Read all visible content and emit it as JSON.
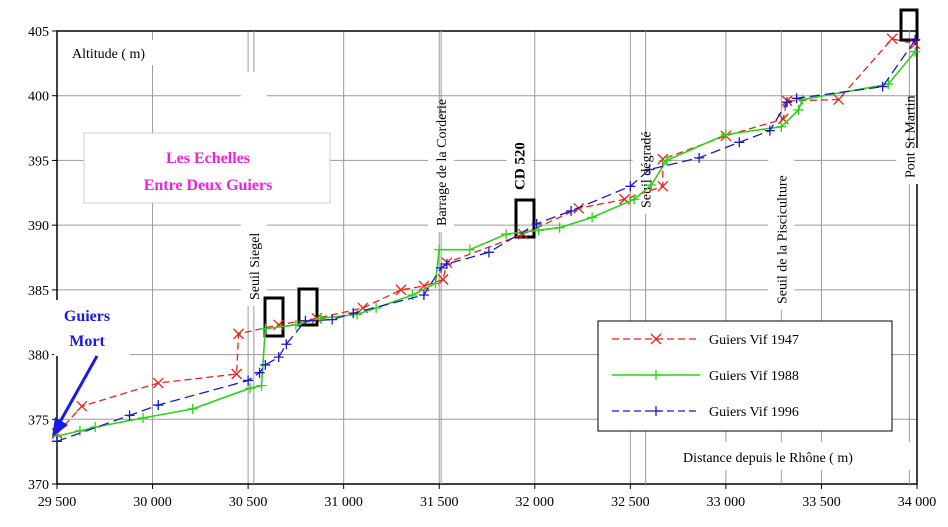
{
  "chart_data": {
    "type": "line",
    "xlabel": "Distance depuis le Rhône ( m)",
    "ylabel": "Altitude ( m)",
    "xlim": [
      29500,
      34000
    ],
    "ylim": [
      370,
      405
    ],
    "x_ticks": [
      {
        "value": 29500,
        "label": "29 500"
      },
      {
        "value": 30000,
        "label": "30 000"
      },
      {
        "value": 30500,
        "label": "30 500"
      },
      {
        "value": 31000,
        "label": "31 000"
      },
      {
        "value": 31500,
        "label": "31 500"
      },
      {
        "value": 32000,
        "label": "32 000"
      },
      {
        "value": 32500,
        "label": "32 500"
      },
      {
        "value": 33000,
        "label": "33 000"
      },
      {
        "value": 33500,
        "label": "33 500"
      },
      {
        "value": 34000,
        "label": "34 000"
      }
    ],
    "y_ticks": [
      {
        "value": 370,
        "label": "370"
      },
      {
        "value": 375,
        "label": "375"
      },
      {
        "value": 380,
        "label": "380"
      },
      {
        "value": 385,
        "label": "385"
      },
      {
        "value": 390,
        "label": "390"
      },
      {
        "value": 395,
        "label": "395"
      },
      {
        "value": 400,
        "label": "400"
      },
      {
        "value": 405,
        "label": "405"
      }
    ],
    "grid": true,
    "legend_placement": "lower-right",
    "series": [
      {
        "name": "Guiers Vif 1947",
        "color": "#e8231b",
        "dash": "dashed",
        "marker": "x",
        "points": [
          [
            29500,
            373.9
          ],
          [
            29630,
            376.0
          ],
          [
            30030,
            377.8
          ],
          [
            30440,
            378.5
          ],
          [
            30450,
            381.6
          ],
          [
            30660,
            382.3
          ],
          [
            30860,
            382.8
          ],
          [
            31100,
            383.6
          ],
          [
            31300,
            385.0
          ],
          [
            31420,
            385.3
          ],
          [
            31520,
            385.8
          ],
          [
            31540,
            387.1
          ],
          [
            31940,
            389.3
          ],
          [
            32230,
            391.3
          ],
          [
            32470,
            392.0
          ],
          [
            32670,
            393.0
          ],
          [
            32670,
            395.1
          ],
          [
            33000,
            396.9
          ],
          [
            33300,
            398.2
          ],
          [
            33320,
            399.6
          ],
          [
            33590,
            399.7
          ],
          [
            33870,
            404.4
          ],
          [
            33990,
            404.0
          ]
        ]
      },
      {
        "name": "Guiers Vif 1988",
        "color": "#2ed11a",
        "dash": "solid",
        "marker": "plus",
        "points": [
          [
            29500,
            373.7
          ],
          [
            29620,
            374.1
          ],
          [
            29700,
            374.4
          ],
          [
            29950,
            375.1
          ],
          [
            30210,
            375.8
          ],
          [
            30510,
            377.4
          ],
          [
            30570,
            377.6
          ],
          [
            30590,
            382.0
          ],
          [
            30750,
            382.3
          ],
          [
            30880,
            382.8
          ],
          [
            31070,
            383.1
          ],
          [
            31170,
            383.6
          ],
          [
            31360,
            384.6
          ],
          [
            31480,
            385.5
          ],
          [
            31500,
            388.1
          ],
          [
            31660,
            388.1
          ],
          [
            31850,
            389.3
          ],
          [
            32020,
            389.6
          ],
          [
            32130,
            389.8
          ],
          [
            32300,
            390.6
          ],
          [
            32520,
            392.0
          ],
          [
            32610,
            393.1
          ],
          [
            32690,
            395.0
          ],
          [
            33000,
            397.0
          ],
          [
            33290,
            397.6
          ],
          [
            33380,
            398.9
          ],
          [
            33400,
            399.7
          ],
          [
            33850,
            400.9
          ],
          [
            33990,
            403.4
          ]
        ]
      },
      {
        "name": "Guiers Vif 1996",
        "color": "#1a1ac8",
        "dash": "dashed",
        "marker": "plus",
        "points": [
          [
            29500,
            373.3
          ],
          [
            29880,
            375.3
          ],
          [
            30030,
            376.1
          ],
          [
            30500,
            378.0
          ],
          [
            30560,
            378.6
          ],
          [
            30590,
            379.2
          ],
          [
            30660,
            379.8
          ],
          [
            30700,
            380.8
          ],
          [
            30800,
            382.6
          ],
          [
            30940,
            382.7
          ],
          [
            31050,
            383.2
          ],
          [
            31420,
            384.6
          ],
          [
            31510,
            386.7
          ],
          [
            31540,
            387.0
          ],
          [
            31760,
            387.9
          ],
          [
            32010,
            390.1
          ],
          [
            32190,
            391.1
          ],
          [
            32500,
            393.0
          ],
          [
            32600,
            394.3
          ],
          [
            32860,
            395.2
          ],
          [
            33070,
            396.4
          ],
          [
            33230,
            397.3
          ],
          [
            33320,
            399.5
          ],
          [
            33370,
            399.8
          ],
          [
            33820,
            400.7
          ],
          [
            33990,
            404.3
          ]
        ]
      }
    ],
    "annotations": {
      "site_title": [
        "Les Echelles",
        "Entre Deux Guiers"
      ],
      "confluence": [
        "Guiers",
        "Mort"
      ],
      "structures": [
        {
          "label": "Seuil Siegel",
          "x": 30530,
          "bold": false
        },
        {
          "label": "Barrage de la Corderie",
          "x": 31510,
          "bold": false
        },
        {
          "label": "CD 520",
          "x": 31920,
          "bold": true
        },
        {
          "label": "Seuil dégradé",
          "x": 32580,
          "bold": false
        },
        {
          "label": "Seuil de la Pisciculture",
          "x": 33290,
          "bold": false
        },
        {
          "label": "Pont St Martin",
          "x": 33960,
          "bold": false
        }
      ]
    }
  }
}
